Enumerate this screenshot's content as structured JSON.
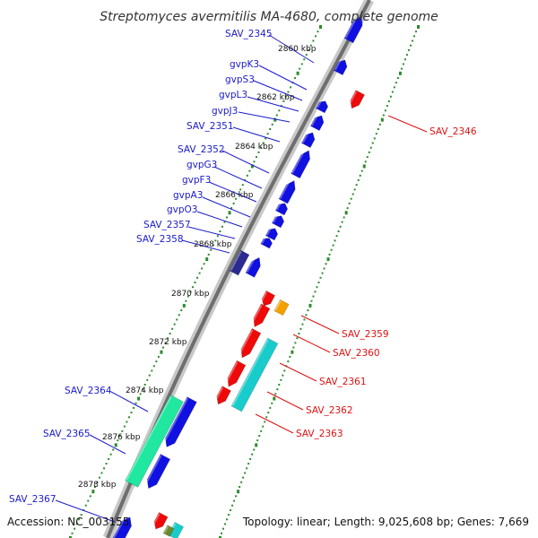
{
  "title": "Streptomyces avermitilis MA-4680, complete genome",
  "footer": {
    "accession": "Accession: NC_003155",
    "topology": "Topology: linear; Length: 9,025,608 bp; Genes: 7,669"
  },
  "colors": {
    "forward": "#1010e0",
    "reverse": "#ee0a0a",
    "cyan": "#19cccc",
    "green": "#20e8a0",
    "orange": "#f5a000",
    "navy": "#2a2a90",
    "label_left": "#1a1acc",
    "label_right": "#dd1111",
    "ticks": "#2e8b2e",
    "axis": "#888888"
  },
  "kbp_ticks": [
    "2860 kbp",
    "2862 kbp",
    "2864 kbp",
    "2866 kbp",
    "2868 kbp",
    "2870 kbp",
    "2872 kbp",
    "2874 kbp",
    "2876 kbp",
    "2878 kbp"
  ],
  "labels_left": [
    "SAV_2345",
    "gvpK3",
    "gvpS3",
    "gvpL3",
    "gvpJ3",
    "SAV_2351",
    "SAV_2352",
    "gvpG3",
    "gvpF3",
    "gvpA3",
    "gvpO3",
    "SAV_2357",
    "SAV_2358",
    "SAV_2364",
    "SAV_2365",
    "SAV_2367"
  ],
  "labels_right": [
    "SAV_2346",
    "SAV_2359",
    "SAV_2360",
    "SAV_2361",
    "SAV_2362",
    "SAV_2363"
  ]
}
